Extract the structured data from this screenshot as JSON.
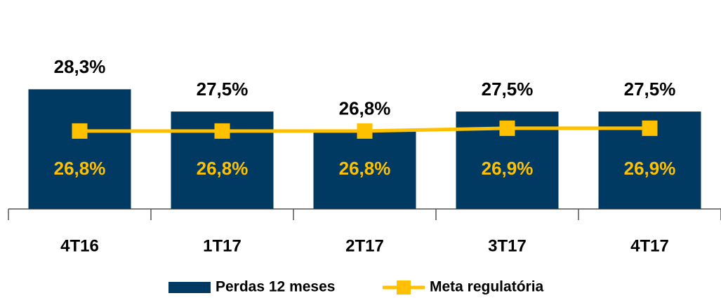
{
  "chart_data": {
    "type": "bar",
    "categories": [
      "4T16",
      "1T17",
      "2T17",
      "3T17",
      "4T17"
    ],
    "series": [
      {
        "name": "Perdas 12 meses",
        "type": "bar",
        "color": "#003a63",
        "values": [
          28.3,
          27.5,
          26.8,
          27.5,
          27.5
        ],
        "value_labels": [
          "28,3%",
          "27,5%",
          "26,8%",
          "27,5%",
          "27,5%"
        ]
      },
      {
        "name": "Meta regulatória",
        "type": "line",
        "color": "#ffc000",
        "values": [
          26.8,
          26.8,
          26.8,
          26.9,
          26.9
        ],
        "value_labels": [
          "26,8%",
          "26,8%",
          "26,8%",
          "26,9%",
          "26,9%"
        ]
      }
    ],
    "ylim": [
      24,
      30.5
    ]
  }
}
